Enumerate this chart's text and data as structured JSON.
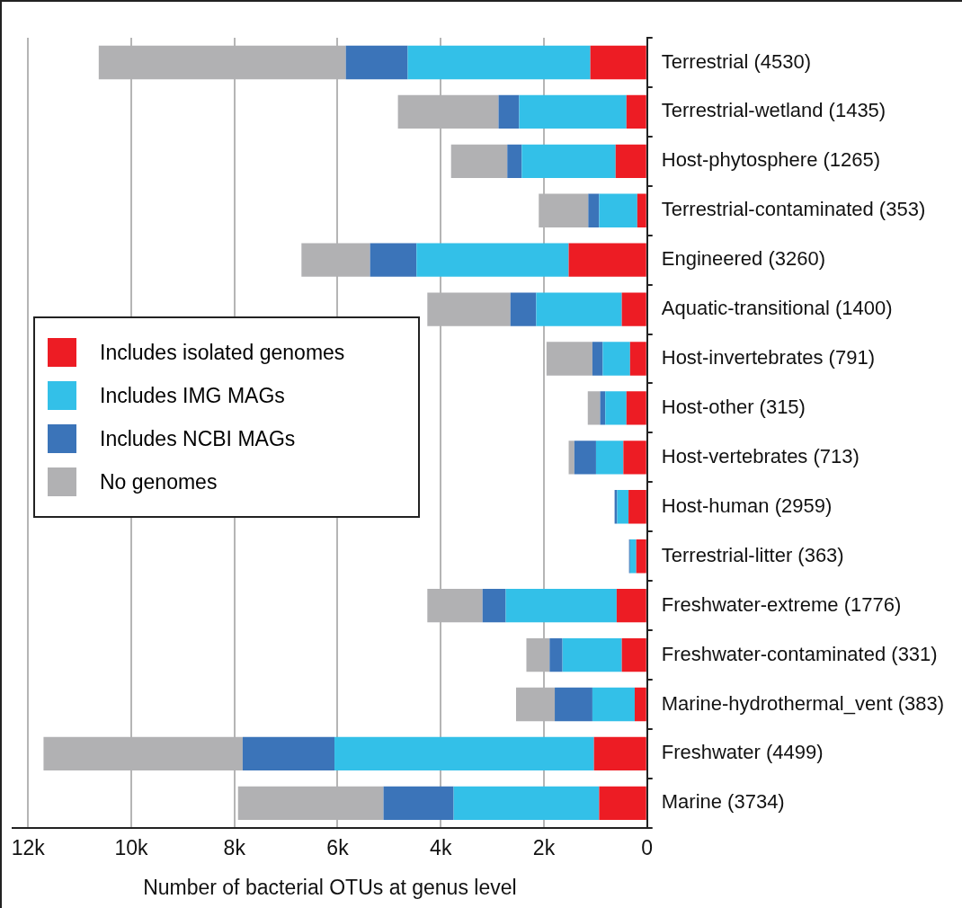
{
  "chart_data": {
    "type": "bar",
    "orientation": "horizontal",
    "stacked": true,
    "categories": [
      "Terrestrial (4530)",
      "Terrestrial-wetland (1435)",
      "Host-phytosphere (1265)",
      "Terrestrial-contaminated (353)",
      "Engineered (3260)",
      "Aquatic-transitional (1400)",
      "Host-invertebrates (791)",
      "Host-other (315)",
      "Host-vertebrates (713)",
      "Host-human (2959)",
      "Terrestrial-litter (363)",
      "Freshwater-extreme (1776)",
      "Freshwater-contaminated (331)",
      "Marine-hydrothermal_vent (383)",
      "Freshwater (4499)",
      "Marine (3734)"
    ],
    "series": [
      {
        "name": "Includes isolated genomes",
        "color": "#ed1c24",
        "values": [
          1100,
          400,
          610,
          190,
          1520,
          490,
          330,
          400,
          460,
          360,
          210,
          590,
          490,
          240,
          1030,
          930
        ]
      },
      {
        "name": "Includes IMG MAGs",
        "color": "#33c0e8",
        "values": [
          3540,
          2080,
          1820,
          740,
          2950,
          1660,
          530,
          410,
          530,
          220,
          120,
          2150,
          1150,
          820,
          5030,
          2820
        ]
      },
      {
        "name": "Includes NCBI MAGs",
        "color": "#3b74b9",
        "values": [
          1200,
          400,
          280,
          210,
          900,
          500,
          200,
          100,
          420,
          50,
          20,
          450,
          250,
          730,
          1780,
          1360
        ]
      },
      {
        "name": "No genomes",
        "color": "#b1b1b3",
        "values": [
          4790,
          1950,
          1090,
          960,
          1330,
          1610,
          890,
          240,
          110,
          0,
          0,
          1070,
          450,
          750,
          3860,
          2820
        ]
      }
    ],
    "xlim": [
      12300,
      0
    ],
    "xticks": [
      {
        "value": 12000,
        "label": "12k"
      },
      {
        "value": 10000,
        "label": "10k"
      },
      {
        "value": 8000,
        "label": "8k"
      },
      {
        "value": 6000,
        "label": "6k"
      },
      {
        "value": 4000,
        "label": "4k"
      },
      {
        "value": 2000,
        "label": "2k"
      },
      0
    ],
    "xlabel": "Number of bacterial OTUs at genus level",
    "grid": "x",
    "legend": "left"
  }
}
